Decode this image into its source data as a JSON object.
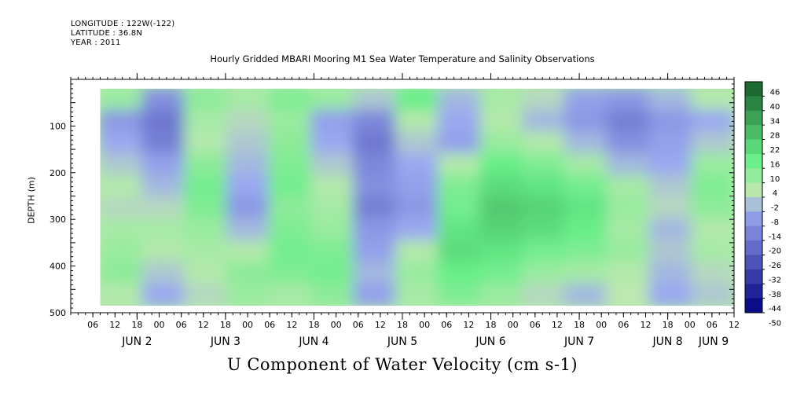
{
  "header": {
    "longitude": "LONGITUDE : 122W(-122)",
    "latitude": "LATITUDE : 36.8N",
    "year": "YEAR : 2011"
  },
  "chart_data": {
    "type": "heatmap",
    "title": "Hourly Gridded MBARI Mooring M1 Sea Water Temperature and Salinity Observations",
    "xlabel": "U Component of Water Velocity (cm s-1)",
    "ylabel": "DEPTH (m)",
    "x_range_hours_from_jun2_00": [
      -18,
      162
    ],
    "x_hour_ticks": [
      "06",
      "12",
      "18",
      "00",
      "06",
      "12",
      "18",
      "00",
      "06",
      "12",
      "18",
      "00",
      "06",
      "12",
      "18",
      "00",
      "06",
      "12",
      "18",
      "00",
      "06",
      "12",
      "18",
      "00",
      "06",
      "12",
      "18",
      "00",
      "06",
      "12",
      "18",
      "00",
      "06"
    ],
    "x_day_labels": [
      {
        "label": "JUN  2",
        "hour": 0
      },
      {
        "label": "JUN  3",
        "hour": 24
      },
      {
        "label": "JUN  4",
        "hour": 48
      },
      {
        "label": "JUN  5",
        "hour": 72
      },
      {
        "label": "JUN  6",
        "hour": 96
      },
      {
        "label": "JUN  7",
        "hour": 120
      },
      {
        "label": "JUN  8",
        "hour": 144
      },
      {
        "label": "JUN  9",
        "hour": 168
      }
    ],
    "y_range": [
      0,
      500
    ],
    "y_axis_inverted": true,
    "y_tick_labels": [
      "100",
      "200",
      "300",
      "400",
      "500"
    ],
    "y_tick_values": [
      100,
      200,
      300,
      400,
      500
    ],
    "data_start_hour": -10,
    "data_depth_range": [
      20,
      485
    ],
    "colorbar_levels": [
      "46",
      "40",
      "34",
      "28",
      "22",
      "16",
      "10",
      "4",
      "-2",
      "-8",
      "-14",
      "-20",
      "-26",
      "-32",
      "-38",
      "-44",
      "-50"
    ],
    "colorbar_range": [
      -50,
      50
    ],
    "colors": {
      "strong_negative": "#000080",
      "weak_negative": "#9aa8f0",
      "near_zero": "#bfe8b0",
      "weak_positive": "#66ee88",
      "strong_positive": "#0a4a1a"
    },
    "u_velocity_cm_s": {
      "depths_m": [
        25,
        75,
        125,
        175,
        225,
        275,
        325,
        375,
        425,
        475
      ],
      "hours": [
        -10,
        2,
        14,
        26,
        38,
        50,
        62,
        74,
        86,
        98,
        110,
        122,
        134,
        146,
        158
      ],
      "values": [
        [
          6,
          -14,
          8,
          4,
          10,
          6,
          -4,
          14,
          -6,
          4,
          -2,
          -10,
          -12,
          -6,
          2
        ],
        [
          -12,
          -20,
          4,
          -2,
          6,
          -10,
          -16,
          2,
          -8,
          2,
          -6,
          -12,
          -18,
          -12,
          -8
        ],
        [
          -8,
          -18,
          2,
          -4,
          8,
          -8,
          -20,
          -4,
          -10,
          6,
          2,
          -6,
          -14,
          -10,
          -4
        ],
        [
          -4,
          -10,
          8,
          -6,
          10,
          -4,
          -16,
          -8,
          2,
          14,
          10,
          4,
          -6,
          -8,
          6
        ],
        [
          2,
          -6,
          12,
          -8,
          12,
          2,
          -14,
          -10,
          10,
          18,
          16,
          12,
          4,
          -4,
          10
        ],
        [
          -2,
          -2,
          10,
          -12,
          8,
          4,
          -18,
          -12,
          12,
          22,
          20,
          16,
          6,
          -2,
          8
        ],
        [
          4,
          4,
          6,
          -6,
          10,
          6,
          -12,
          -8,
          16,
          20,
          18,
          14,
          4,
          -6,
          2
        ],
        [
          6,
          2,
          4,
          2,
          12,
          10,
          -10,
          2,
          18,
          16,
          12,
          10,
          6,
          -4,
          4
        ],
        [
          8,
          -4,
          2,
          8,
          10,
          12,
          -6,
          6,
          14,
          12,
          6,
          4,
          2,
          -6,
          -2
        ],
        [
          2,
          -8,
          -2,
          6,
          4,
          8,
          -10,
          4,
          10,
          6,
          -2,
          -6,
          0,
          -8,
          -4
        ]
      ]
    }
  }
}
